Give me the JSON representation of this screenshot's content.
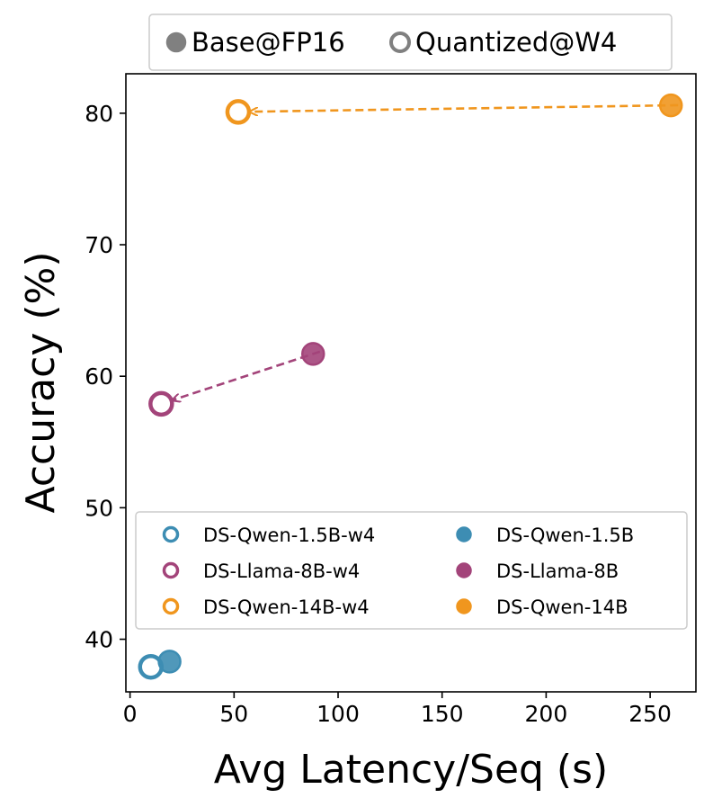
{
  "chart_data": {
    "type": "scatter",
    "title": "",
    "xlabel": "Avg Latency/Seq (s)",
    "ylabel": "Accuracy (%)",
    "xlim": [
      -2,
      272
    ],
    "ylim": [
      36,
      83
    ],
    "xticks": [
      0,
      50,
      100,
      150,
      200,
      250
    ],
    "yticks": [
      40,
      50,
      60,
      70,
      80
    ],
    "grid": false,
    "style_legend": {
      "placement": "top-center-outside",
      "entries": [
        {
          "label": "Base@FP16",
          "marker": "filled"
        },
        {
          "label": "Quantized@W4",
          "marker": "hollow"
        }
      ]
    },
    "legend_placement": "lower-right",
    "series": [
      {
        "name": "DS-Qwen-1.5B-w4",
        "color": "#3d8db3",
        "marker": "hollow",
        "x": [
          10
        ],
        "y": [
          37.9
        ]
      },
      {
        "name": "DS-Qwen-1.5B",
        "color": "#3d8db3",
        "marker": "filled",
        "x": [
          19
        ],
        "y": [
          38.3
        ]
      },
      {
        "name": "DS-Llama-8B-w4",
        "color": "#a3447a",
        "marker": "hollow",
        "x": [
          15
        ],
        "y": [
          57.9
        ]
      },
      {
        "name": "DS-Llama-8B",
        "color": "#a3447a",
        "marker": "filled",
        "x": [
          88
        ],
        "y": [
          61.7
        ]
      },
      {
        "name": "DS-Qwen-14B-w4",
        "color": "#f0961e",
        "marker": "hollow",
        "x": [
          52
        ],
        "y": [
          80.1
        ]
      },
      {
        "name": "DS-Qwen-14B",
        "color": "#f0961e",
        "marker": "filled",
        "x": [
          260
        ],
        "y": [
          80.6
        ]
      }
    ],
    "legend_order": [
      "DS-Qwen-1.5B-w4",
      "DS-Llama-8B-w4",
      "DS-Qwen-14B-w4",
      "DS-Qwen-1.5B",
      "DS-Llama-8B",
      "DS-Qwen-14B"
    ],
    "arrows": [
      {
        "from": "DS-Llama-8B",
        "to": "DS-Llama-8B-w4",
        "color": "#a3447a",
        "style": "dashed"
      },
      {
        "from": "DS-Qwen-14B",
        "to": "DS-Qwen-14B-w4",
        "color": "#f0961e",
        "style": "dashed"
      }
    ]
  }
}
